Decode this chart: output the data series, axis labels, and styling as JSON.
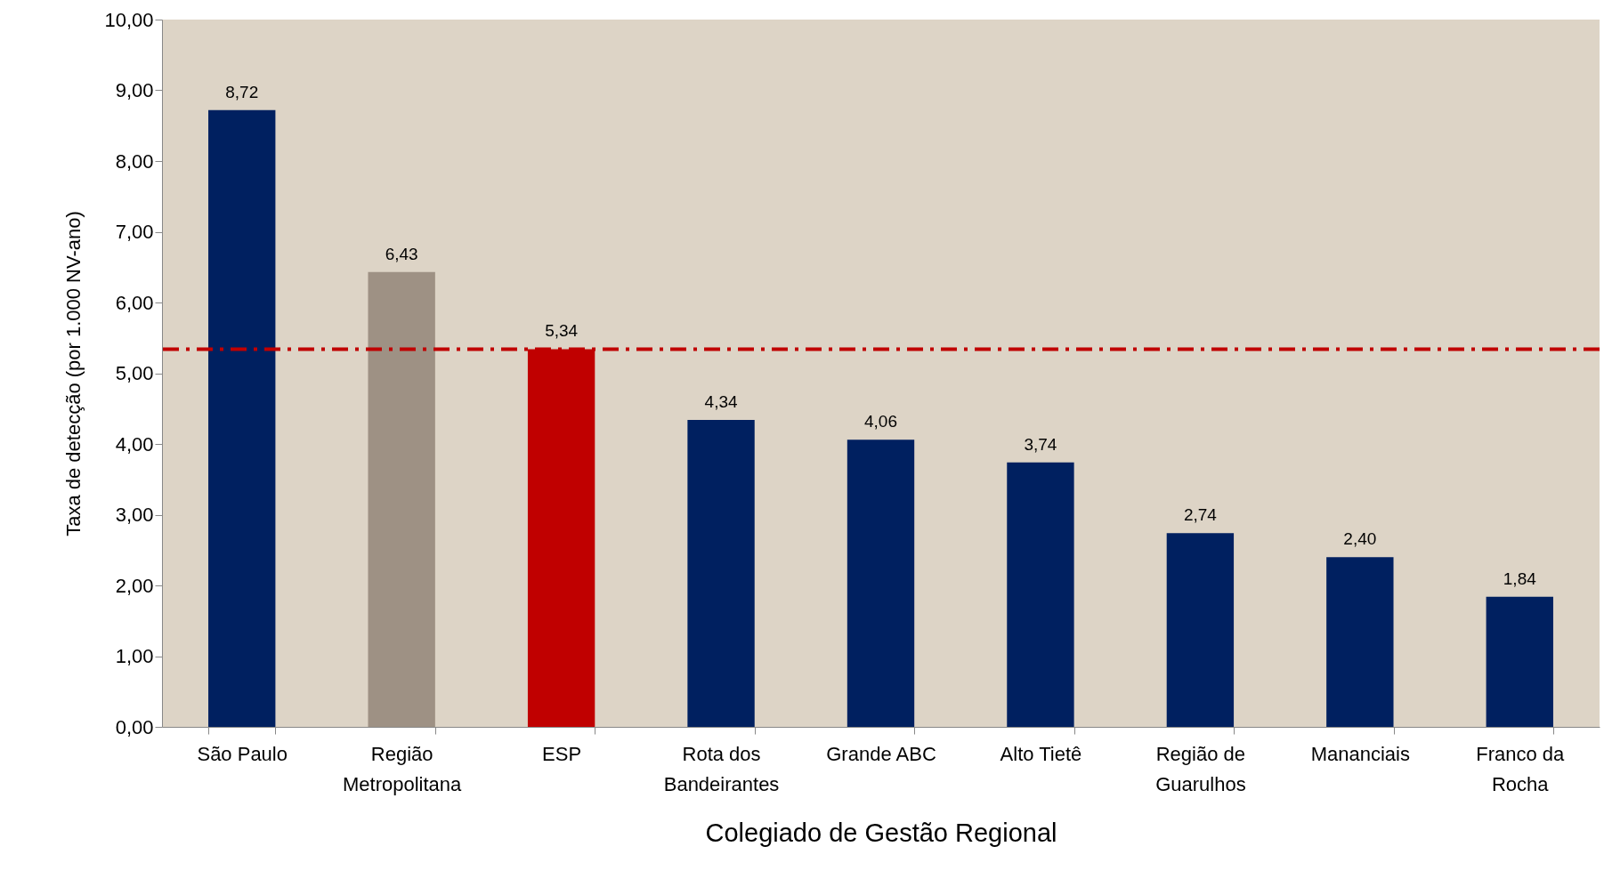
{
  "chart_data": {
    "type": "bar",
    "xlabel": "Colegiado de Gestão Regional",
    "ylabel": "Taxa de detecção (por 1.000 NV-ano)",
    "categories": [
      "São Paulo",
      "Região Metropolitana",
      "ESP",
      "Rota dos Bandeirantes",
      "Grande ABC",
      "Alto Tietê",
      "Região de Guarulhos",
      "Mananciais",
      "Franco da Rocha"
    ],
    "values": [
      8.72,
      6.43,
      5.34,
      4.34,
      4.06,
      3.74,
      2.74,
      2.4,
      1.84
    ],
    "colors": [
      "#002060",
      "#9e9184",
      "#c00000",
      "#002060",
      "#002060",
      "#002060",
      "#002060",
      "#002060",
      "#002060"
    ],
    "value_labels": [
      "8,72",
      "6,43",
      "5,34",
      "4,34",
      "4,06",
      "3,74",
      "2,74",
      "2,40",
      "1,84"
    ],
    "ylim": [
      0,
      10
    ],
    "yticks": [
      {
        "value": 0,
        "label": "0,00"
      },
      {
        "value": 1,
        "label": "1,00"
      },
      {
        "value": 2,
        "label": "2,00"
      },
      {
        "value": 3,
        "label": "3,00"
      },
      {
        "value": 4,
        "label": "4,00"
      },
      {
        "value": 5,
        "label": "5,00"
      },
      {
        "value": 6,
        "label": "6,00"
      },
      {
        "value": 7,
        "label": "7,00"
      },
      {
        "value": 8,
        "label": "8,00"
      },
      {
        "value": 9,
        "label": "9,00"
      },
      {
        "value": 10,
        "label": "10,00"
      }
    ],
    "ref_lines": [
      {
        "axis": "y",
        "value": 5.34,
        "color": "#c00000",
        "line_style": "dashed"
      }
    ],
    "grid": false
  }
}
